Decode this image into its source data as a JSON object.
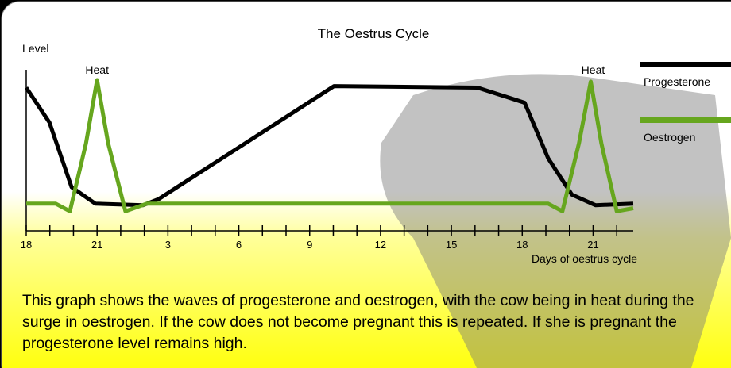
{
  "chart_data": {
    "type": "line",
    "title": "The Oestrus Cycle",
    "y_label": "Level",
    "x_label": "Days of oestrus cycle",
    "x": {
      "Progesterone": null
    },
    "xlim": [
      0,
      25.7
    ],
    "ylim": [
      0,
      100
    ],
    "xticks": [
      {
        "value": 0,
        "label": "18"
      },
      {
        "value": 3,
        "label": "21"
      },
      {
        "value": 6,
        "label": "3"
      },
      {
        "value": 9,
        "label": "6"
      },
      {
        "value": 12,
        "label": "9"
      },
      {
        "value": 15,
        "label": "12"
      },
      {
        "value": 18,
        "label": "15"
      },
      {
        "value": 21,
        "label": "18"
      },
      {
        "value": 24,
        "label": "21"
      }
    ],
    "x_minor_ticks": [
      1,
      2,
      4,
      5,
      7,
      8,
      10,
      11,
      13,
      14,
      16,
      17,
      19,
      20,
      22,
      23,
      25
    ],
    "series": [
      {
        "name": "Progesterone",
        "color": "#000000",
        "x": [
          0,
          0.98,
          1.92,
          2.93,
          4.95,
          5.6,
          13.03,
          19.1,
          21.1,
          22.1,
          23.1,
          24.1,
          25.7
        ],
        "values": [
          95,
          72,
          29,
          18,
          17,
          21,
          96,
          95,
          85,
          48,
          24,
          17,
          18
        ]
      },
      {
        "name": "Oestrogen",
        "color": "#66a61e",
        "x": [
          0,
          1.25,
          1.85,
          2.53,
          3.0,
          3.47,
          4.2,
          5.1,
          22.1,
          22.7,
          23.4,
          23.9,
          24.35,
          25.0,
          25.7
        ],
        "values": [
          18,
          18,
          13,
          58,
          100,
          58,
          13,
          18,
          18,
          13,
          58,
          99,
          58,
          13,
          15
        ]
      }
    ],
    "annotations": [
      {
        "text": "Heat",
        "x": 3
      },
      {
        "text": "Heat",
        "x": 24
      }
    ],
    "description": "This graph shows the waves of progesterone and oestrogen, with the cow being in heat during the surge in oestrogen. If the cow does not become pregnant this is repeated. If she is pregnant the progesterone level remains high."
  }
}
